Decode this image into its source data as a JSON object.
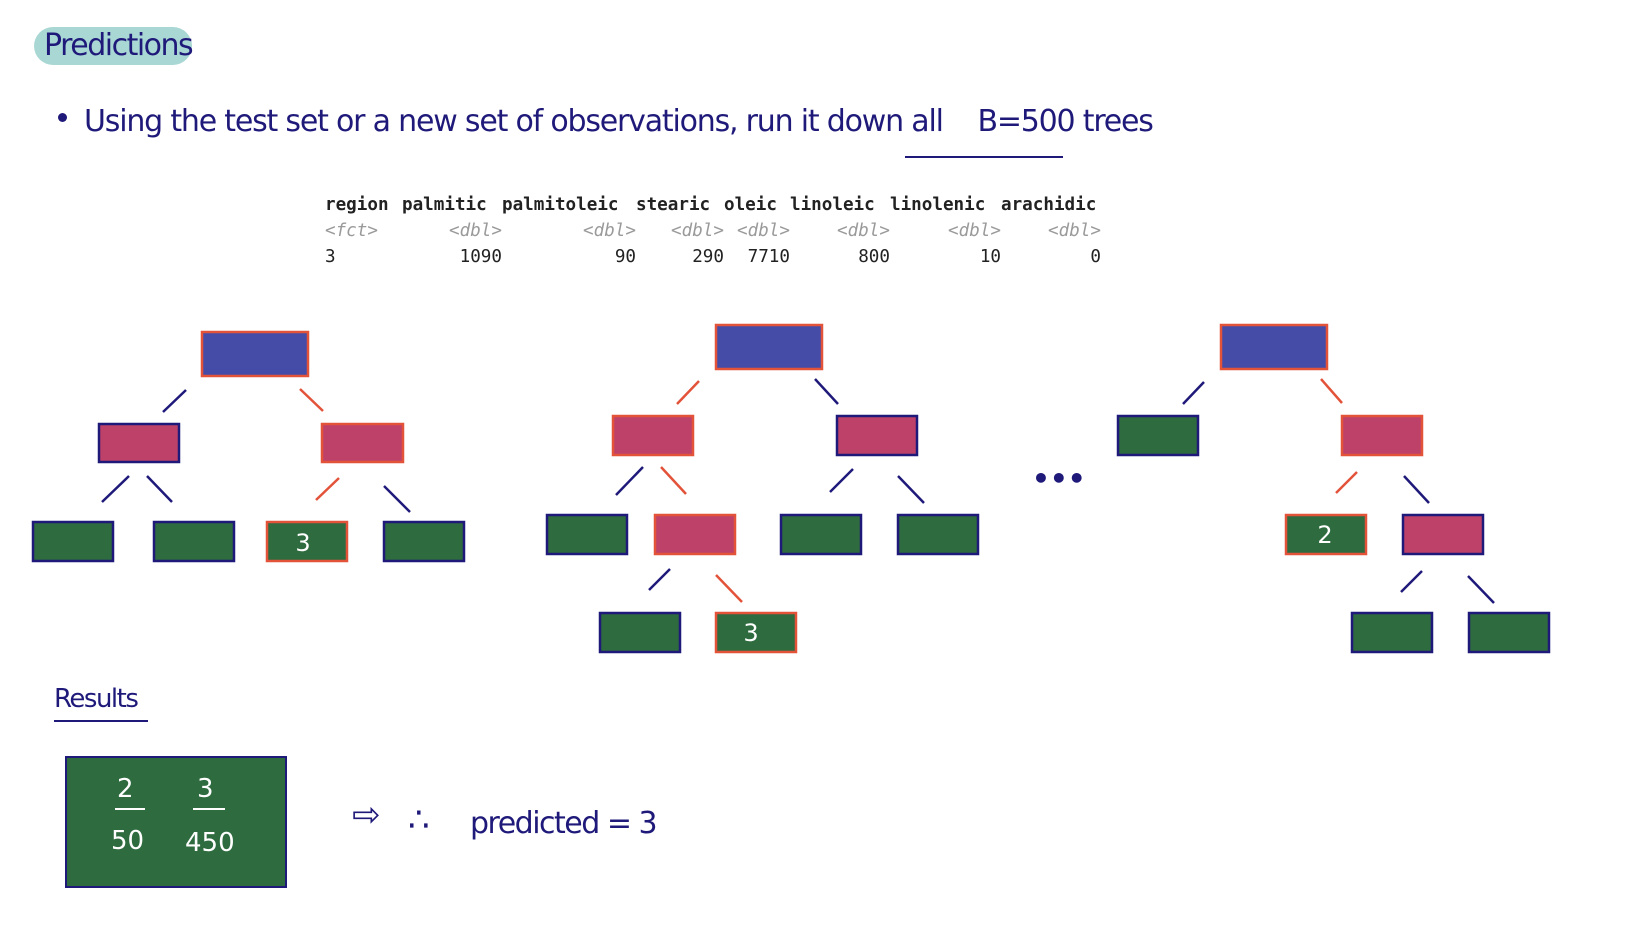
{
  "title": "Predictions",
  "bullet": {
    "text": "Using the test set or a new set of observations, run it down all",
    "highlight": "B=500 trees"
  },
  "table": {
    "headers": [
      "region",
      "palmitic",
      "palmitoleic",
      "stearic",
      "oleic",
      "linoleic",
      "linolenic",
      "arachidic"
    ],
    "types": [
      "<fct>",
      "<dbl>",
      "<dbl>",
      "<dbl>",
      "<dbl>",
      "<dbl>",
      "<dbl>",
      "<dbl>"
    ],
    "row": [
      "3",
      "1090",
      "90",
      "290",
      "7710",
      "800",
      "10",
      "0"
    ]
  },
  "trees": [
    {
      "leaf_labels": {
        "t1_leaf3": "3"
      }
    },
    {
      "leaf_labels": {
        "t2_leaf_deep2": "3"
      }
    },
    {
      "leaf_labels": {
        "t3_leaf_mid": "2"
      }
    }
  ],
  "ellipsis": "•••",
  "results": {
    "label": "Results",
    "classes": [
      "2",
      "3"
    ],
    "counts": [
      "50",
      "450"
    ]
  },
  "conclusion": {
    "arrow": "⇨",
    "therefore": "∴",
    "text": "predicted = 3"
  },
  "colors": {
    "root": "#454ca8",
    "internal": "#be4169",
    "leaf": "#2e6b3f",
    "path": "#e2533a",
    "ink": "#1f1a7a"
  }
}
